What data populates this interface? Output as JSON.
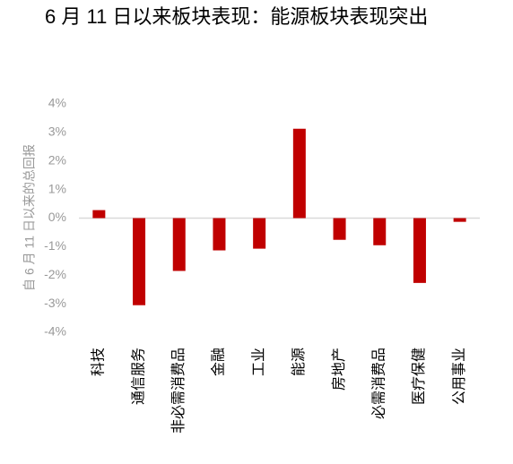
{
  "chart_data": {
    "type": "bar",
    "title": "6 月 11 日以来板块表现：能源板块表现突出",
    "y_label": "自 6 月 11 日以来的总回报",
    "categories": [
      "科技",
      "通信服务",
      "非必需消费品",
      "金融",
      "工业",
      "能源",
      "房地产",
      "必需消费品",
      "医疗保健",
      "公用事业"
    ],
    "values": [
      0.28,
      -3.05,
      -1.85,
      -1.13,
      -1.07,
      3.13,
      -0.76,
      -0.95,
      -2.27,
      -0.13
    ],
    "color": "#c00000",
    "ylim": [
      -4,
      4
    ],
    "yticks": [
      {
        "value": -4,
        "label": "-4%"
      },
      {
        "value": -3,
        "label": "-3%"
      },
      {
        "value": -2,
        "label": "-2%"
      },
      {
        "value": -1,
        "label": "-1%"
      },
      {
        "value": 0,
        "label": "0%"
      },
      {
        "value": 1,
        "label": "1%"
      },
      {
        "value": 2,
        "label": "2%"
      },
      {
        "value": 3,
        "label": "3%"
      },
      {
        "value": 4,
        "label": "4%"
      }
    ],
    "grid": false
  }
}
